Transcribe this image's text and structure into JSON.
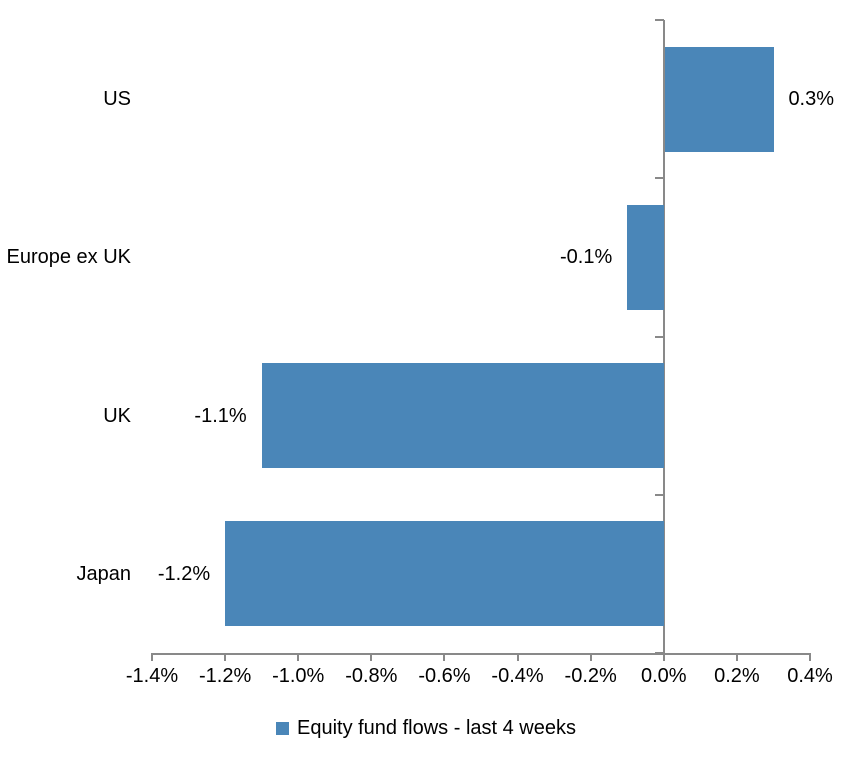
{
  "chart_data": {
    "type": "bar",
    "orientation": "horizontal",
    "title": "",
    "xlabel": "",
    "ylabel": "",
    "categories": [
      "US",
      "Europe ex UK",
      "UK",
      "Japan"
    ],
    "values": [
      0.3,
      -0.1,
      -1.1,
      -1.2
    ],
    "data_labels": [
      "0.3%",
      "-0.1%",
      "-1.1%",
      "-1.2%"
    ],
    "series": [
      {
        "name": "Equity fund flows - last 4 weeks",
        "values": [
          0.3,
          -0.1,
          -1.1,
          -1.2
        ]
      }
    ],
    "unit": "percent",
    "xlim": [
      -1.4,
      0.4
    ],
    "x_tick_values": [
      -1.4,
      -1.2,
      -1.0,
      -0.8,
      -0.6,
      -0.4,
      -0.2,
      0.0,
      0.2,
      0.4
    ],
    "x_ticks": [
      "-1.4%",
      "-1.2%",
      "-1.0%",
      "-0.8%",
      "-0.6%",
      "-0.4%",
      "-0.2%",
      "0.0%",
      "0.2%",
      "0.4%"
    ],
    "grid": false,
    "legend_position": "bottom",
    "colors": {
      "bar": "#4A86B8",
      "axis": "#898989",
      "text": "#000000",
      "background": "#FFFFFF"
    }
  },
  "legend": {
    "label": "Equity fund flows - last 4 weeks"
  }
}
